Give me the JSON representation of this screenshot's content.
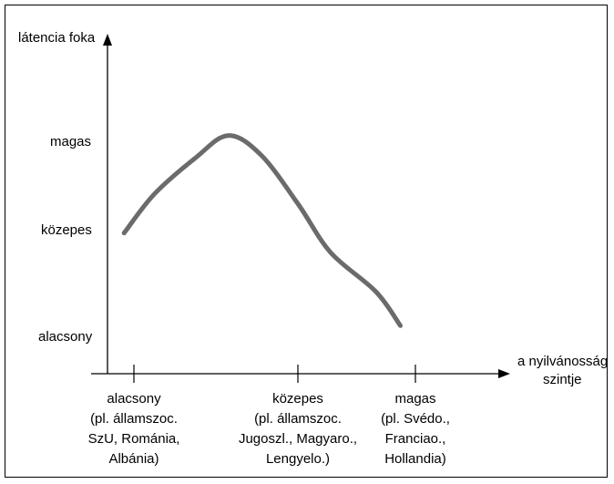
{
  "chart_data": {
    "type": "line",
    "ylabel": "látencia foka",
    "xlabel_lines": [
      "a nyilvánosság",
      "szintje"
    ],
    "y_levels": [
      "alacsony",
      "közepes",
      "magas"
    ],
    "x_categories": [
      {
        "lines": [
          "alacsony",
          "(pl. államszoc.",
          "SzU, Románia,",
          "Albánia)"
        ]
      },
      {
        "lines": [
          "közepes",
          "(pl. államszoc.",
          "Jugoszl., Magyaro.,",
          "Lengyelo.)"
        ]
      },
      {
        "lines": [
          "magas",
          "(pl. Svédo.,",
          "Franciao.,",
          "Hollandia)"
        ]
      }
    ],
    "series": [
      {
        "color": "#6b6b6b",
        "points": [
          {
            "x": 0.88,
            "y": 2.05
          },
          {
            "x": 1.25,
            "y": 2.45
          },
          {
            "x": 1.75,
            "y": 2.82
          },
          {
            "x": 2.15,
            "y": 3.05
          },
          {
            "x": 2.55,
            "y": 2.85
          },
          {
            "x": 3.0,
            "y": 2.35
          },
          {
            "x": 3.4,
            "y": 1.85
          },
          {
            "x": 3.95,
            "y": 1.45
          },
          {
            "x": 4.25,
            "y": 1.1
          }
        ]
      }
    ],
    "x_tick_positions": [
      1,
      3,
      4
    ],
    "xlim": [
      0,
      5
    ],
    "ylim": [
      0.5,
      3.8
    ],
    "grid": false,
    "legend": "none"
  }
}
